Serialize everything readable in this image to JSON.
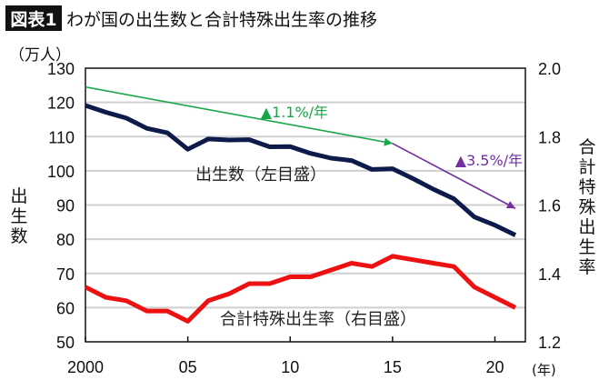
{
  "chart_data": {
    "type": "line",
    "title_badge": "図表1",
    "title": "わが国の出生数と合計特殊出生率の推移",
    "left_unit": "（万人）",
    "left_label": "出生数",
    "right_label": "合計特殊出生率",
    "x_unit": "(年)",
    "x": [
      2000,
      2001,
      2002,
      2003,
      2004,
      2005,
      2006,
      2007,
      2008,
      2009,
      2010,
      2011,
      2012,
      2013,
      2014,
      2015,
      2016,
      2017,
      2018,
      2019,
      2020,
      2021
    ],
    "x_ticks": [
      2000,
      2005,
      2010,
      2015,
      2020
    ],
    "x_tick_labels": [
      "2000",
      "05",
      "10",
      "15",
      "20"
    ],
    "ylim_left": [
      50,
      130
    ],
    "y_ticks_left": [
      "50",
      "60",
      "70",
      "80",
      "90",
      "100",
      "110",
      "120",
      "130"
    ],
    "ylim_right": [
      1.2,
      2.0
    ],
    "y_ticks_right": [
      "1.2",
      "1.4",
      "1.6",
      "1.8",
      "2.0"
    ],
    "grid": true,
    "series": [
      {
        "name": "出生数（左目盛）",
        "axis": "left",
        "color": "#0d1a4a",
        "values": [
          119.1,
          117.1,
          115.4,
          112.4,
          111.1,
          106.3,
          109.3,
          109.0,
          109.1,
          107.0,
          107.1,
          105.1,
          103.7,
          103.0,
          100.4,
          100.6,
          97.7,
          94.6,
          91.8,
          86.5,
          84.1,
          81.2
        ]
      },
      {
        "name": "合計特殊出生率（右目盛）",
        "axis": "right",
        "color": "#ee1111",
        "values": [
          1.36,
          1.33,
          1.32,
          1.29,
          1.29,
          1.26,
          1.32,
          1.34,
          1.37,
          1.37,
          1.39,
          1.39,
          1.41,
          1.43,
          1.42,
          1.45,
          1.44,
          1.43,
          1.42,
          1.36,
          1.33,
          1.3
        ]
      }
    ],
    "annotations": [
      {
        "text": "▲1.1%/年",
        "color": "#1aa64a",
        "arrow_from": [
          2000,
          124.5
        ],
        "arrow_to": [
          2015,
          108
        ],
        "label_at": [
          2009,
          118
        ]
      },
      {
        "text": "▲3.5%/年",
        "color": "#7030a0",
        "arrow_from": [
          2015,
          108
        ],
        "arrow_to": [
          2021,
          89
        ],
        "label_at": [
          2018.5,
          104
        ]
      }
    ]
  }
}
